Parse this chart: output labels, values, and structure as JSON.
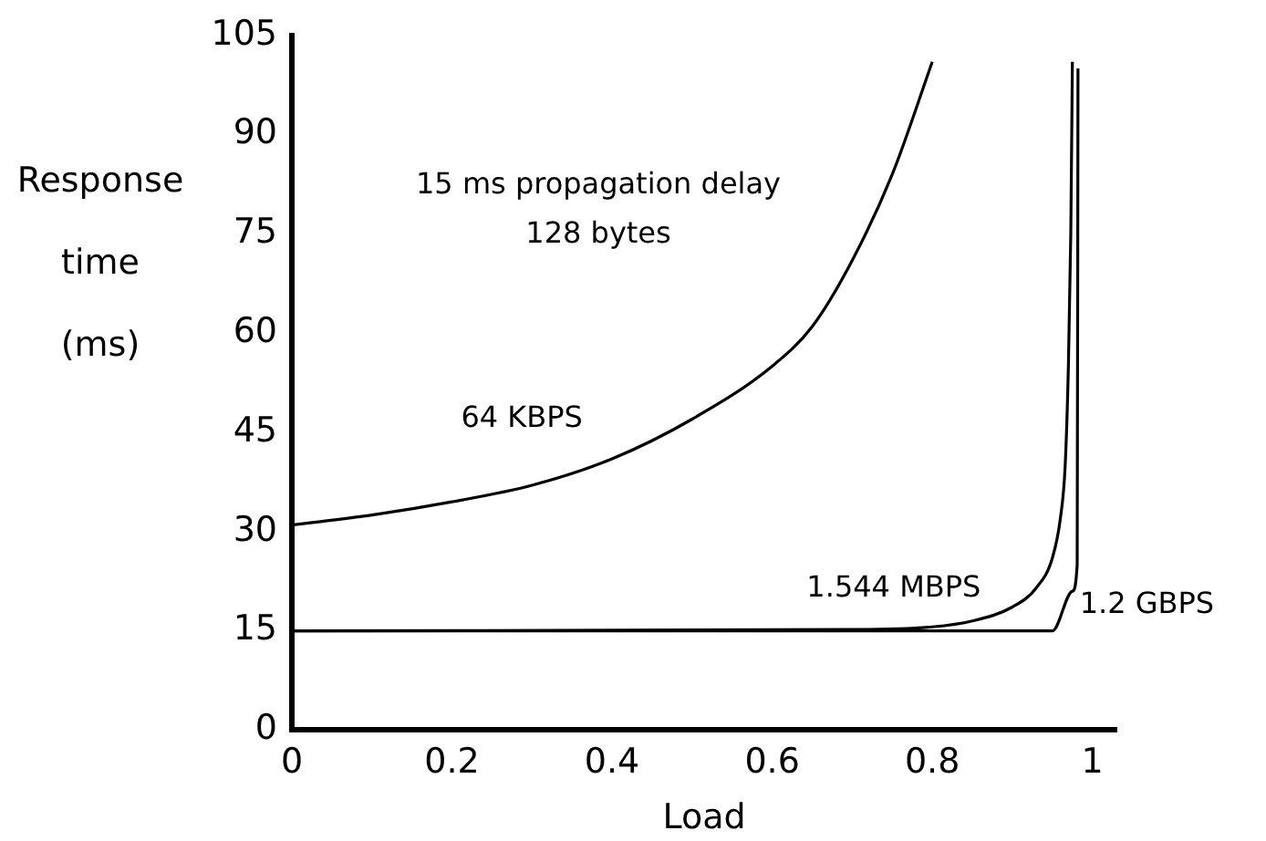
{
  "chart_data": {
    "type": "line",
    "xlabel": "Load",
    "ylabel": "Response time (ms)",
    "annotations": [
      "15 ms propagation delay",
      "128 bytes"
    ],
    "xlim": [
      0,
      1.03
    ],
    "xticks": [
      0,
      0.2,
      0.4,
      0.6,
      0.8,
      1
    ],
    "ylim": [
      0,
      105
    ],
    "yticks": [
      0,
      15,
      30,
      45,
      60,
      75,
      90,
      105
    ],
    "grid": false,
    "legend": false,
    "marker": "none",
    "line_style": "solid",
    "series": [
      {
        "name": "64 KBPS",
        "color": "#000000",
        "x": [
          0,
          0.1,
          0.2,
          0.3,
          0.4,
          0.5,
          0.6,
          0.65,
          0.7,
          0.75,
          0.8
        ],
        "values": [
          31,
          32.5,
          34.5,
          37,
          41,
          47,
          55,
          61,
          71,
          84,
          101
        ]
      },
      {
        "name": "1.544 MBPS",
        "color": "#000000",
        "x": [
          0,
          0.7,
          0.8,
          0.85,
          0.9,
          0.93,
          0.95,
          0.96,
          0.966,
          0.97,
          0.973,
          0.975
        ],
        "values": [
          15,
          15.2,
          15.6,
          16.5,
          18.6,
          21.5,
          26,
          32,
          40,
          55,
          75,
          101
        ]
      },
      {
        "name": "1.2 GBPS",
        "color": "#000000",
        "x": [
          0,
          0.95,
          0.975,
          0.981,
          0.982
        ],
        "values": [
          15,
          15,
          21,
          25,
          100
        ]
      }
    ]
  }
}
